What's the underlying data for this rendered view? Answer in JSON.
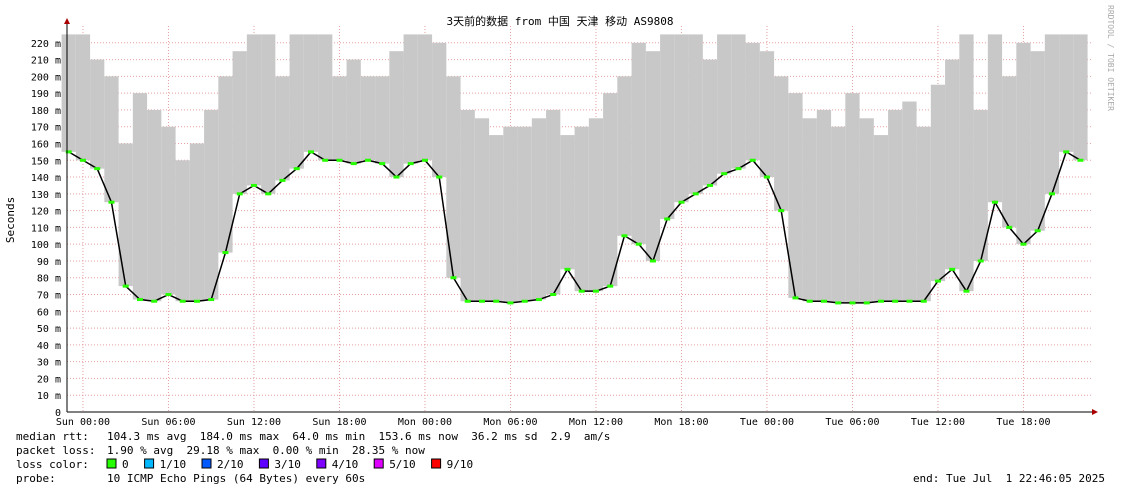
{
  "chart_data": {
    "type": "line",
    "title": "3天前的数据 from 中国 天津 移动 AS9808",
    "y_label": "Seconds",
    "side_note": "RRDTOOL / TOBI OETIKER",
    "xlim": [
      -1.12,
      70.88
    ],
    "ylim": [
      0,
      0.23
    ],
    "xticks": [
      {
        "value": 0,
        "label": "Sun 00:00"
      },
      {
        "value": 6,
        "label": "Sun 06:00"
      },
      {
        "value": 12,
        "label": "Sun 12:00"
      },
      {
        "value": 18,
        "label": "Sun 18:00"
      },
      {
        "value": 24,
        "label": "Mon 00:00"
      },
      {
        "value": 30,
        "label": "Mon 06:00"
      },
      {
        "value": 36,
        "label": "Mon 12:00"
      },
      {
        "value": 42,
        "label": "Mon 18:00"
      },
      {
        "value": 48,
        "label": "Tue 00:00"
      },
      {
        "value": 54,
        "label": "Tue 06:00"
      },
      {
        "value": 60,
        "label": "Tue 12:00"
      },
      {
        "value": 66,
        "label": "Tue 18:00"
      }
    ],
    "yticks": [
      0,
      {
        "value": 0.01,
        "label": "10 m"
      },
      {
        "value": 0.02,
        "label": "20 m"
      },
      {
        "value": 0.03,
        "label": "30 m"
      },
      {
        "value": 0.04,
        "label": "40 m"
      },
      {
        "value": 0.05,
        "label": "50 m"
      },
      {
        "value": 0.06,
        "label": "60 m"
      },
      {
        "value": 0.07,
        "label": "70 m"
      },
      {
        "value": 0.08,
        "label": "80 m"
      },
      {
        "value": 0.09,
        "label": "90 m"
      },
      {
        "value": 0.1,
        "label": "100 m"
      },
      {
        "value": 0.11,
        "label": "110 m"
      },
      {
        "value": 0.12,
        "label": "120 m"
      },
      {
        "value": 0.13,
        "label": "130 m"
      },
      {
        "value": 0.14,
        "label": "140 m"
      },
      {
        "value": 0.15,
        "label": "150 m"
      },
      {
        "value": 0.16,
        "label": "160 m"
      },
      {
        "value": 0.17,
        "label": "170 m"
      },
      {
        "value": 0.18,
        "label": "180 m"
      },
      {
        "value": 0.19,
        "label": "190 m"
      },
      {
        "value": 0.2,
        "label": "200 m"
      },
      {
        "value": 0.21,
        "label": "210 m"
      },
      {
        "value": 0.22,
        "label": "220 m"
      }
    ],
    "grid": true,
    "grid_color": "#e8a0a0",
    "smoke_color": "#c8c8c8",
    "color": "#000000",
    "dot_color": "#26ff00",
    "x": [
      -1,
      0,
      1,
      2,
      3,
      4,
      5,
      6,
      7,
      8,
      9,
      10,
      11,
      12,
      13,
      14,
      15,
      16,
      17,
      18,
      19,
      20,
      21,
      22,
      23,
      24,
      25,
      26,
      27,
      28,
      29,
      30,
      31,
      32,
      33,
      34,
      35,
      36,
      37,
      38,
      39,
      40,
      41,
      42,
      43,
      44,
      45,
      46,
      47,
      48,
      49,
      50,
      51,
      52,
      53,
      54,
      55,
      56,
      57,
      58,
      59,
      60,
      61,
      62,
      63,
      64,
      65,
      66,
      67,
      68,
      69,
      70
    ],
    "values": [
      0.155,
      0.15,
      0.145,
      0.125,
      0.075,
      0.067,
      0.066,
      0.07,
      0.066,
      0.066,
      0.067,
      0.095,
      0.13,
      0.135,
      0.13,
      0.138,
      0.145,
      0.155,
      0.15,
      0.15,
      0.148,
      0.15,
      0.148,
      0.14,
      0.148,
      0.15,
      0.14,
      0.08,
      0.066,
      0.066,
      0.066,
      0.065,
      0.066,
      0.067,
      0.07,
      0.085,
      0.072,
      0.072,
      0.075,
      0.105,
      0.1,
      0.09,
      0.115,
      0.125,
      0.13,
      0.135,
      0.142,
      0.145,
      0.15,
      0.14,
      0.12,
      0.068,
      0.066,
      0.066,
      0.065,
      0.065,
      0.065,
      0.066,
      0.066,
      0.066,
      0.066,
      0.078,
      0.085,
      0.072,
      0.09,
      0.125,
      0.11,
      0.1,
      0.108,
      0.13,
      0.155,
      0.15
    ],
    "smoke_max": [
      0.225,
      0.225,
      0.21,
      0.2,
      0.16,
      0.19,
      0.18,
      0.17,
      0.15,
      0.16,
      0.18,
      0.2,
      0.215,
      0.225,
      0.225,
      0.2,
      0.225,
      0.225,
      0.225,
      0.2,
      0.21,
      0.2,
      0.2,
      0.215,
      0.225,
      0.225,
      0.22,
      0.2,
      0.18,
      0.175,
      0.165,
      0.17,
      0.17,
      0.175,
      0.18,
      0.165,
      0.17,
      0.175,
      0.19,
      0.2,
      0.22,
      0.215,
      0.225,
      0.225,
      0.225,
      0.21,
      0.225,
      0.225,
      0.22,
      0.215,
      0.2,
      0.19,
      0.175,
      0.18,
      0.17,
      0.19,
      0.175,
      0.165,
      0.18,
      0.185,
      0.17,
      0.195,
      0.21,
      0.225,
      0.18,
      0.225,
      0.2,
      0.22,
      0.215,
      0.225,
      0.225,
      0.225
    ],
    "stats": [
      {
        "label": "median rtt:",
        "text": "104.3 ms avg  184.0 ms max  64.0 ms min  153.6 ms now  36.2 ms sd  2.9  am/s"
      },
      {
        "label": "packet loss:",
        "text": "1.90 % avg  29.18 % max  0.00 % min  28.35 % now"
      }
    ],
    "loss_legend": {
      "label": "loss color:",
      "items": [
        {
          "label": "0",
          "color": "#26ff00"
        },
        {
          "label": "1/10",
          "color": "#00b8ff"
        },
        {
          "label": "2/10",
          "color": "#0059ff"
        },
        {
          "label": "3/10",
          "color": "#5e00ff"
        },
        {
          "label": "4/10",
          "color": "#7e00ff"
        },
        {
          "label": "5/10",
          "color": "#dd00ff"
        },
        {
          "label": "9/10",
          "color": "#ff0000"
        }
      ]
    },
    "probe": {
      "label": "probe:",
      "text": "10 ICMP Echo Pings (64 Bytes) every 60s"
    },
    "end": "end: Tue Jul  1 22:46:05 2025"
  }
}
